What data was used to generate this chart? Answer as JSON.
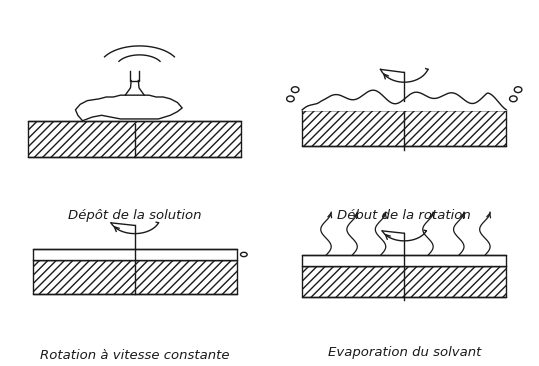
{
  "background_color": "#ffffff",
  "labels": [
    "Dépôt de la solution",
    "Début de la rotation",
    "Rotation à vitesse constante",
    "Evaporation du solvant"
  ],
  "label_fontsize": 9.5,
  "fig_width": 5.39,
  "fig_height": 3.66,
  "line_color": "#1a1a1a"
}
